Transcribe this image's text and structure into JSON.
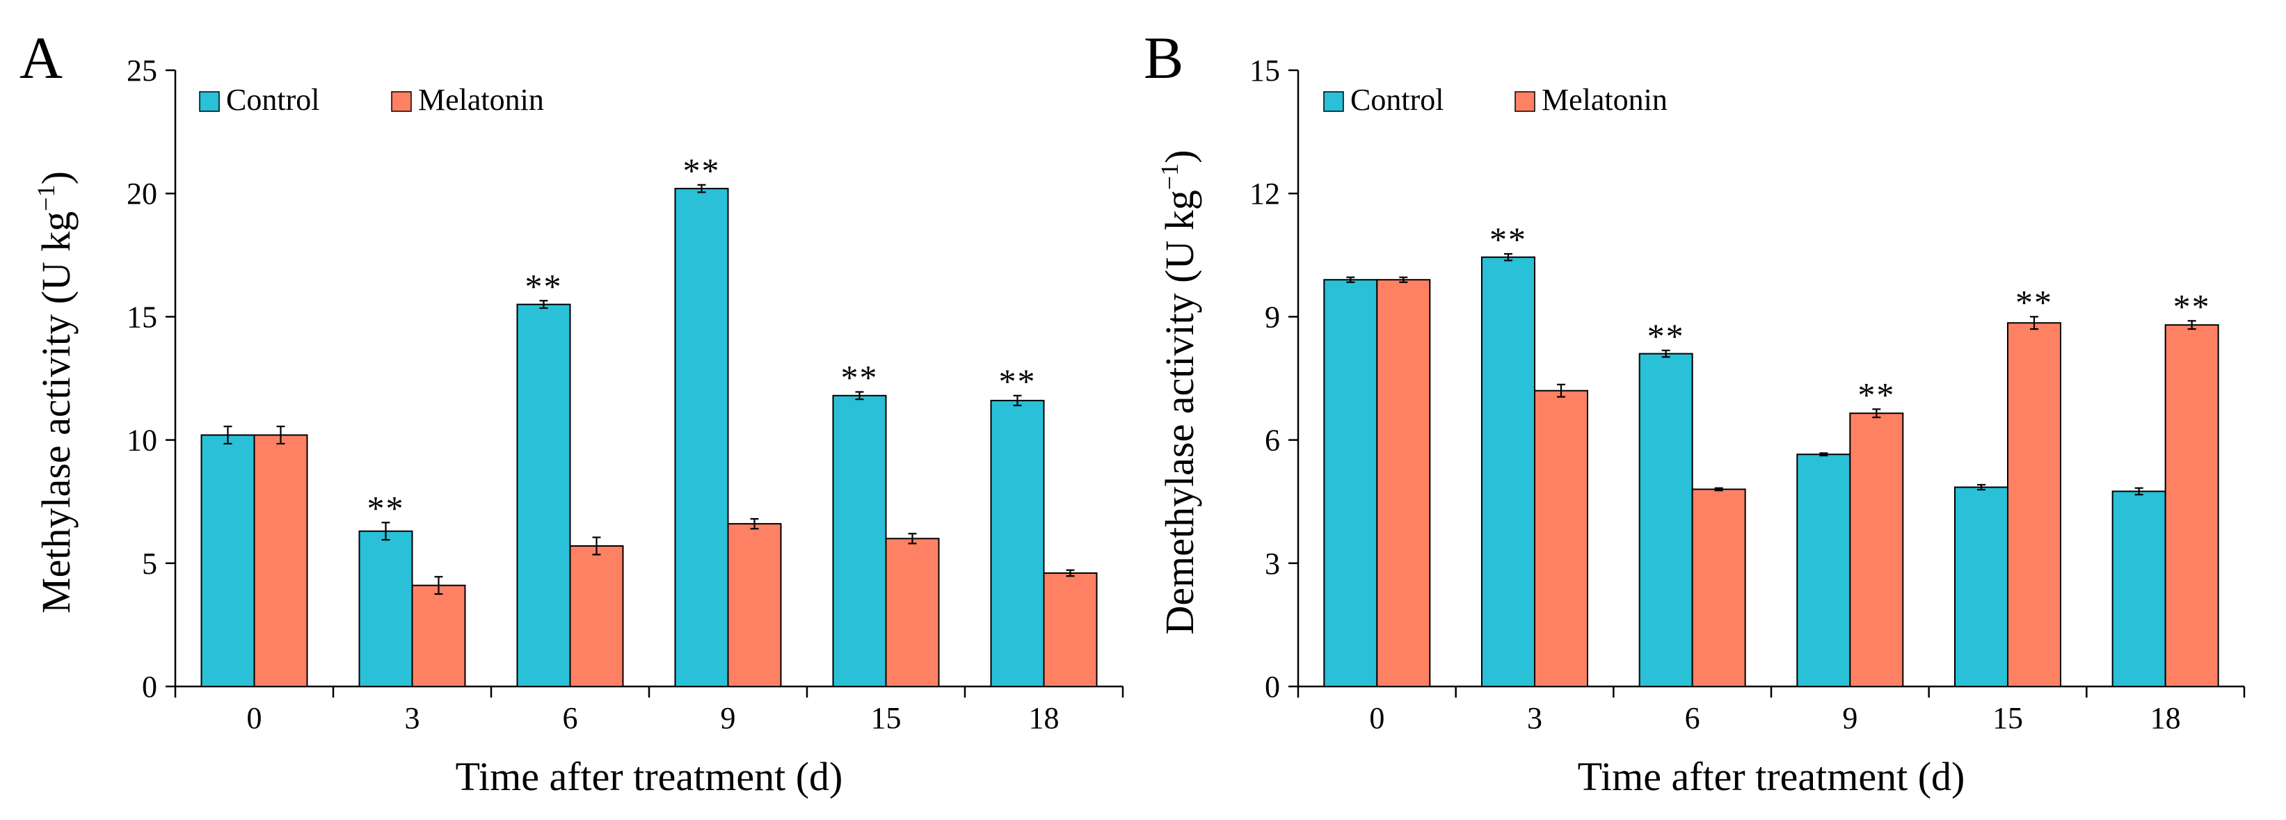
{
  "chart_data": [
    {
      "panel": "A",
      "type": "bar",
      "categories": [
        "0",
        "3",
        "6",
        "9",
        "15",
        "18"
      ],
      "series": [
        {
          "name": "Control",
          "color": "#29C0D8",
          "values": [
            10.2,
            6.3,
            15.5,
            20.2,
            11.8,
            11.6
          ],
          "errors": [
            0.35,
            0.35,
            0.15,
            0.15,
            0.15,
            0.2
          ]
        },
        {
          "name": "Melatonin",
          "color": "#FF8163",
          "values": [
            10.2,
            4.1,
            5.7,
            6.6,
            6.0,
            4.6
          ],
          "errors": [
            0.35,
            0.35,
            0.35,
            0.2,
            0.2,
            0.12
          ]
        }
      ],
      "significance": [
        {
          "category": "3",
          "series": "Control",
          "label": "**"
        },
        {
          "category": "6",
          "series": "Control",
          "label": "**"
        },
        {
          "category": "9",
          "series": "Control",
          "label": "**"
        },
        {
          "category": "15",
          "series": "Control",
          "label": "**"
        },
        {
          "category": "18",
          "series": "Control",
          "label": "**"
        }
      ],
      "xlabel": "Time after treatment (d)",
      "ylabel_main": "Methylase activity (U kg",
      "ylabel_sup": "−1",
      "ylabel_end": ")",
      "ylim": [
        0,
        25
      ],
      "yticks": [
        0,
        5,
        10,
        15,
        20,
        25
      ],
      "grid": false,
      "legend_position": "top-left"
    },
    {
      "panel": "B",
      "type": "bar",
      "categories": [
        "0",
        "3",
        "6",
        "9",
        "15",
        "18"
      ],
      "series": [
        {
          "name": "Control",
          "color": "#29C0D8",
          "values": [
            9.9,
            10.45,
            8.1,
            5.65,
            4.85,
            4.75
          ],
          "errors": [
            0.06,
            0.08,
            0.08,
            0.03,
            0.06,
            0.08
          ]
        },
        {
          "name": "Melatonin",
          "color": "#FF8163",
          "values": [
            9.9,
            7.2,
            4.8,
            6.65,
            8.85,
            8.8
          ],
          "errors": [
            0.06,
            0.15,
            0.03,
            0.1,
            0.15,
            0.1
          ]
        }
      ],
      "significance": [
        {
          "category": "3",
          "series": "Control",
          "label": "**"
        },
        {
          "category": "6",
          "series": "Control",
          "label": "**"
        },
        {
          "category": "9",
          "series": "Melatonin",
          "label": "**"
        },
        {
          "category": "15",
          "series": "Melatonin",
          "label": "**"
        },
        {
          "category": "18",
          "series": "Melatonin",
          "label": "**"
        }
      ],
      "xlabel": "Time after treatment (d)",
      "ylabel_main": "Demethylase activity (U kg",
      "ylabel_sup": "−1",
      "ylabel_end": ")",
      "ylim": [
        0,
        15
      ],
      "yticks": [
        0,
        3,
        6,
        9,
        12,
        15
      ],
      "grid": false,
      "legend_position": "top-left"
    }
  ]
}
